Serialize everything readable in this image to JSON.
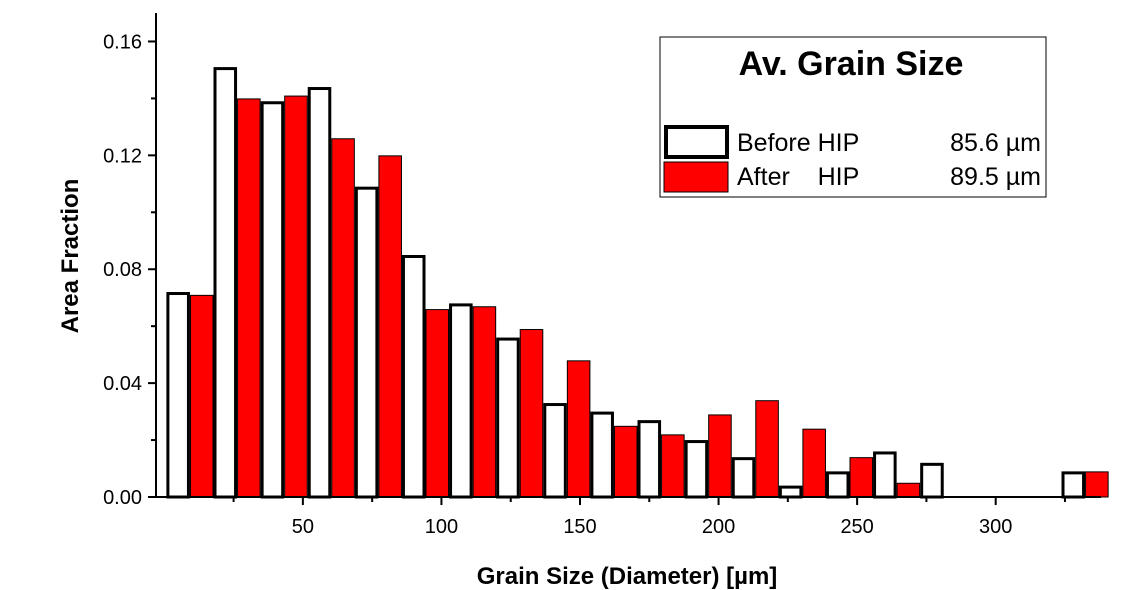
{
  "chart_data": {
    "type": "bar",
    "xlabel": "Grain Size (Diameter) [µm]",
    "ylabel": "Area Fraction",
    "xlim": [
      -3,
      338
    ],
    "ylim": [
      0,
      0.17
    ],
    "xticks": [
      50,
      100,
      150,
      200,
      250,
      300
    ],
    "xtick_labels": [
      "50",
      "100",
      "150",
      "200",
      "250",
      "300"
    ],
    "yticks": [
      0.0,
      0.04,
      0.08,
      0.12,
      0.16
    ],
    "ytick_labels": [
      "0.00",
      "0.04",
      "0.08",
      "0.12",
      "0.16"
    ],
    "bin_width": 8.5,
    "series": [
      {
        "name": "Before HIP",
        "fill": "#ffffff",
        "stroke": "#000000",
        "x": [
          5,
          22,
          39,
          56,
          73,
          90,
          107,
          124,
          141,
          158,
          175,
          192,
          209,
          226,
          243,
          260,
          277,
          294,
          311,
          328
        ],
        "values": [
          0.072,
          0.151,
          0.139,
          0.144,
          0.109,
          0.085,
          0.068,
          0.056,
          0.033,
          0.03,
          0.027,
          0.02,
          0.014,
          0.004,
          0.009,
          0.016,
          0.012,
          0.0,
          0.0,
          0.009
        ]
      },
      {
        "name": "After HIP",
        "fill": "#ff0000",
        "stroke": "#000000",
        "x": [
          13.5,
          30.5,
          47.5,
          64.5,
          81.5,
          98.5,
          115.5,
          132.5,
          149.5,
          166.5,
          183.5,
          200.5,
          217.5,
          234.5,
          251.5,
          268.5,
          285.5,
          302.5,
          319.5,
          336.5
        ],
        "values": [
          0.071,
          0.14,
          0.141,
          0.126,
          0.12,
          0.066,
          0.067,
          0.059,
          0.048,
          0.025,
          0.022,
          0.029,
          0.034,
          0.024,
          0.014,
          0.005,
          0.0,
          0.0,
          0.0,
          0.009
        ]
      }
    ],
    "legend": {
      "title": "Av. Grain Size",
      "placement": "top-right",
      "entries": [
        {
          "label": "Before HIP",
          "value": "85.6 µm",
          "fill": "#ffffff"
        },
        {
          "label": "After    HIP",
          "value": "89.5 µm",
          "fill": "#ff0000"
        }
      ]
    }
  }
}
